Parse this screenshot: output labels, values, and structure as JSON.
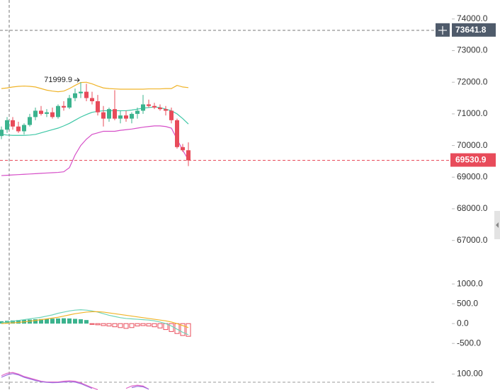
{
  "chart_data": {
    "type": "candlestick",
    "open": [
      70300,
      70500,
      70800,
      70600,
      70450,
      70650,
      70900,
      71100,
      71000,
      71050,
      70900,
      71250,
      71200,
      71500,
      71650,
      71700,
      71500,
      71400,
      71050,
      70850,
      71150,
      70850,
      70950,
      70850,
      71000,
      71100,
      71300,
      71250,
      71200,
      71150,
      71100,
      70800,
      69950,
      69850
    ],
    "high": [
      70600,
      70900,
      70900,
      70750,
      70700,
      71000,
      71200,
      71250,
      71150,
      71200,
      71300,
      71400,
      71600,
      71800,
      71999.9,
      71950,
      71700,
      71600,
      71250,
      71200,
      71750,
      71100,
      71100,
      71050,
      71200,
      71600,
      71450,
      71350,
      71300,
      71250,
      71200,
      70850,
      70050,
      70100
    ],
    "low": [
      70200,
      70400,
      70500,
      70400,
      70350,
      70600,
      70800,
      70950,
      70900,
      70850,
      70850,
      71100,
      71150,
      71400,
      71500,
      71400,
      71300,
      70950,
      70600,
      70750,
      70800,
      70700,
      70750,
      70700,
      70850,
      71000,
      71200,
      71150,
      71100,
      70950,
      70700,
      69900,
      69800,
      69350
    ],
    "close": [
      70500,
      70800,
      70600,
      70450,
      70650,
      70900,
      71100,
      71000,
      71050,
      70900,
      71250,
      71200,
      71500,
      71650,
      71700,
      71500,
      71400,
      71050,
      70850,
      71150,
      70850,
      70950,
      70850,
      71000,
      71100,
      71300,
      71250,
      71200,
      71150,
      71100,
      70800,
      69950,
      69850,
      69530.9
    ],
    "up_color": "#3bb38e",
    "down_color": "#e84b5a",
    "annotate_high": true,
    "ylim": [
      66500,
      74600
    ],
    "yticks": [
      {
        "value": 74000,
        "label": "74000.0"
      },
      {
        "value": 73000,
        "label": "73000.0"
      },
      {
        "value": 72000,
        "label": "72000.0"
      },
      {
        "value": 71000,
        "label": "71000.0"
      },
      {
        "value": 70000,
        "label": "70000.0"
      },
      {
        "value": 69000,
        "label": "69000.0"
      },
      {
        "value": 68000,
        "label": "68000.0"
      },
      {
        "value": 67000,
        "label": "67000.0"
      }
    ],
    "grid": false,
    "crosshair_price": 73641.8,
    "overlays": [
      {
        "color": "#f0b429",
        "values": [
          71800,
          71820,
          71850,
          71870,
          71880,
          71870,
          71850,
          71800,
          71750,
          71720,
          71700,
          71720,
          71800,
          71900,
          71990,
          72000,
          71950,
          71880,
          71820,
          71800,
          71790,
          71780,
          71780,
          71780,
          71780,
          71780,
          71790,
          71790,
          71790,
          71800,
          71800,
          71900,
          71850,
          71830
        ]
      },
      {
        "color": "#3ec7a6",
        "values": [
          70350,
          70330,
          70320,
          70320,
          70320,
          70330,
          70350,
          70400,
          70450,
          70500,
          70550,
          70620,
          70700,
          70800,
          70900,
          70980,
          71050,
          71080,
          71100,
          71100,
          71100,
          71100,
          71100,
          71120,
          71150,
          71180,
          71200,
          71220,
          71200,
          71150,
          71100,
          71000,
          70850,
          70680
        ]
      },
      {
        "color": "#d64fc8",
        "values": [
          69050,
          69060,
          69070,
          69080,
          69090,
          69100,
          69110,
          69120,
          69130,
          69140,
          69150,
          69170,
          69300,
          69700,
          70000,
          70200,
          70350,
          70400,
          70450,
          70450,
          70450,
          70480,
          70500,
          70520,
          70550,
          70580,
          70600,
          70620,
          70620,
          70600,
          70550,
          70200,
          69850,
          69550
        ]
      }
    ],
    "panes": [
      {
        "type": "macd",
        "ylim": [
          -800,
          1200
        ],
        "yticks": [
          {
            "value": 1000,
            "label": "1000.0"
          },
          {
            "value": 500,
            "label": "500.0"
          },
          {
            "value": 0,
            "label": "0.0"
          },
          {
            "value": -500,
            "label": "-500.0"
          }
        ],
        "up_color": "#3bb38e",
        "down_color": "#e84b5a",
        "histogram": [
          60,
          70,
          80,
          90,
          95,
          100,
          110,
          115,
          120,
          125,
          130,
          135,
          130,
          120,
          110,
          90,
          -20,
          -30,
          -50,
          -60,
          -80,
          -100,
          -120,
          -100,
          -60,
          -50,
          -60,
          -80,
          -110,
          -150,
          -200,
          -250,
          -300,
          -320
        ],
        "lines": [
          {
            "color": "#6fd3b8",
            "values": [
              20,
              40,
              60,
              80,
              100,
              120,
              140,
              160,
              190,
              220,
              260,
              290,
              320,
              340,
              350,
              340,
              320,
              290,
              250,
              210,
              180,
              150,
              130,
              120,
              110,
              100,
              90,
              70,
              40,
              0,
              -60,
              -140,
              -220,
              -280
            ]
          },
          {
            "color": "#f0b429",
            "values": [
              0,
              10,
              20,
              30,
              45,
              60,
              80,
              100,
              120,
              140,
              160,
              190,
              220,
              250,
              270,
              290,
              300,
              300,
              290,
              270,
              250,
              230,
              210,
              190,
              170,
              150,
              130,
              110,
              90,
              70,
              40,
              0,
              -50,
              -100
            ]
          }
        ]
      },
      {
        "type": "line",
        "ylim": [
          90,
          106
        ],
        "yticks": [
          {
            "value": 100,
            "label": "100.00"
          }
        ],
        "lines": [
          {
            "color": "#e066c8",
            "values": [
              99,
              100.5,
              101,
              100,
              98.5,
              97.5,
              96.5,
              95.5,
              95,
              95,
              95,
              95.5,
              95.8,
              95.5,
              94.5,
              93,
              91.5,
              90.2,
              null,
              null,
              null,
              null,
              91,
              92.5,
              93,
              92.5,
              90.5,
              null,
              null,
              null,
              null,
              null,
              null,
              null
            ]
          },
          {
            "color": "#9c6ade",
            "values": [
              98,
              99.5,
              100.3,
              99.5,
              98,
              97,
              96,
              95.2,
              94.8,
              94.6,
              94.7,
              95,
              95.2,
              95,
              94,
              92.5,
              91,
              null,
              null,
              null,
              null,
              null,
              null,
              91.5,
              92.3,
              92,
              90.5,
              null,
              null,
              null,
              null,
              null,
              null,
              null
            ]
          }
        ]
      }
    ]
  }
}
